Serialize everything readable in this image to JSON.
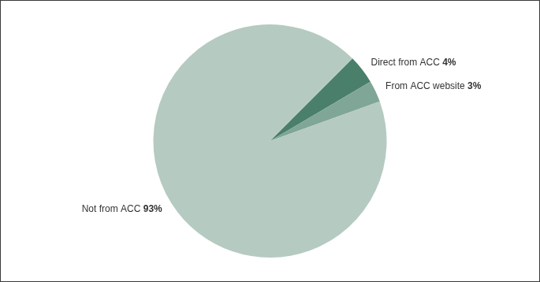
{
  "chart_data": {
    "type": "pie",
    "categories": [
      "Direct from ACC",
      "From ACC website",
      "Not from ACC"
    ],
    "values": [
      4,
      3,
      93
    ],
    "value_labels": [
      "4%",
      "3%",
      "93%"
    ],
    "colors": [
      "#4a7f6b",
      "#7fa696",
      "#b5cac1"
    ],
    "data_labels": true
  }
}
